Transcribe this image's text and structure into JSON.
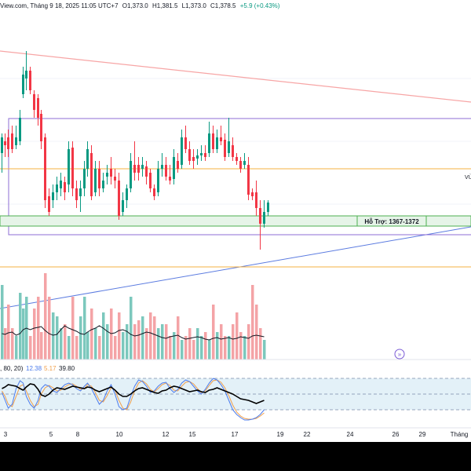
{
  "header": {
    "source_fragment": "View.com, Tháng 9 18, 2025 11:05 UTC+7",
    "open": "O1,373.0",
    "high": "H1,381.5",
    "low": "L1,373.0",
    "close": "C1,378.5",
    "change": "+5.9 (+0.43%)"
  },
  "support_label": "Hỗ Trợ: 1367-1372",
  "right_edge_label": "VÙ",
  "oscillator_legend": {
    "params": ", 80, 20)",
    "k_value": "12.38",
    "d_value": "5.17",
    "third_value": "39.80"
  },
  "x_axis_labels": [
    "3",
    "5",
    "8",
    "10",
    "12",
    "15",
    "17",
    "19",
    "22",
    "24",
    "26",
    "29",
    "Tháng"
  ],
  "colors": {
    "up": "#089981",
    "down": "#f23645",
    "up_volume": "#7cc8bd",
    "down_volume": "#f4a3a6",
    "resistance_line": "#f7a5a5",
    "trend_line": "#5b7be0",
    "range_box": "#8c6cd6",
    "orange_level": "#f5b041",
    "support_zone_fill": "#e6f4e8",
    "support_zone_border": "#4caf50",
    "k_line": "#4b7bec",
    "d_line": "#f0a04b"
  },
  "icons": {
    "scroll_button": "double-chevron-right-icon"
  }
}
